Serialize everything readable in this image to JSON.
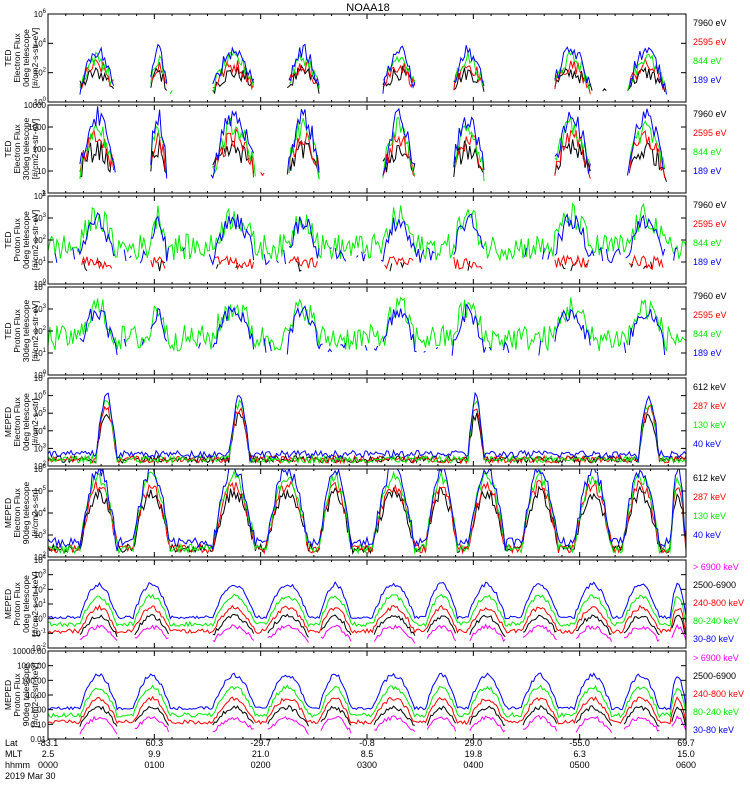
{
  "title": "NOAA18",
  "time_axis": {
    "row_labels": [
      "Lat",
      "MLT",
      "hhmm"
    ],
    "date": "2019 Mar 30",
    "columns": [
      {
        "lat": "-83.1",
        "mlt": "2.5",
        "hhmm": "0000"
      },
      {
        "lat": "60.3",
        "mlt": "9.9",
        "hhmm": "0100"
      },
      {
        "lat": "-29.7",
        "mlt": "21.0",
        "hhmm": "0200"
      },
      {
        "lat": "-0.8",
        "mlt": "8.5",
        "hhmm": "0300"
      },
      {
        "lat": "29.0",
        "mlt": "19.8",
        "hhmm": "0400"
      },
      {
        "lat": "-55.0",
        "mlt": "6.3",
        "hhmm": "0500"
      },
      {
        "lat": "69.7",
        "mlt": "15.0",
        "hhmm": "0600"
      }
    ]
  },
  "colors": {
    "black": "#000000",
    "red": "#ff0000",
    "green": "#00ee00",
    "blue": "#0000ff",
    "magenta": "#ff00ff"
  },
  "chart_data": [
    {
      "type": "line",
      "ylabel": [
        "TED",
        "Electron Flux",
        "0deg telescope",
        "[#/cm2-s-str-eV]"
      ],
      "yscale": "log",
      "ylim": [
        1,
        1000000
      ],
      "ytick_labels": [
        "10^0",
        "10^2",
        "10^4",
        "10^6"
      ],
      "series": [
        {
          "name": "7960 eV",
          "color": "black"
        },
        {
          "name": "2595 eV",
          "color": "red"
        },
        {
          "name": "844 eV",
          "color": "green"
        },
        {
          "name": "189 eV",
          "color": "blue"
        }
      ]
    },
    {
      "type": "line",
      "ylabel": [
        "TED",
        "Electron Flux",
        "30deg telescope",
        "[#/cm2-s-str-eV]"
      ],
      "yscale": "log",
      "ylim": [
        1,
        10000
      ],
      "ytick_labels": [
        "1",
        "10",
        "100",
        "1000",
        "10000"
      ],
      "series": [
        {
          "name": "7960 eV",
          "color": "black"
        },
        {
          "name": "2595 eV",
          "color": "red"
        },
        {
          "name": "844 eV",
          "color": "green"
        },
        {
          "name": "189 eV",
          "color": "blue"
        }
      ]
    },
    {
      "type": "line",
      "ylabel": [
        "TED",
        "Proton Flux",
        "0deg telescope",
        "[#/cm2-s-str-eV]"
      ],
      "yscale": "log",
      "ylim": [
        1,
        10000
      ],
      "ytick_labels": [
        "10^0",
        "10^1",
        "10^2",
        "10^3",
        "10^4"
      ],
      "series": [
        {
          "name": "7960 eV",
          "color": "black"
        },
        {
          "name": "2595 eV",
          "color": "red"
        },
        {
          "name": "844 eV",
          "color": "green"
        },
        {
          "name": "189 eV",
          "color": "blue"
        }
      ]
    },
    {
      "type": "line",
      "ylabel": [
        "TED",
        "Proton Flux",
        "30deg telescope",
        "[#/cm2-s-str-eV]"
      ],
      "yscale": "log",
      "ylim": [
        1,
        10000
      ],
      "ytick_labels": [
        "10^0",
        "10^1",
        "10^2",
        "10^3",
        "10^4"
      ],
      "series": [
        {
          "name": "7960 eV",
          "color": "black"
        },
        {
          "name": "2595 eV",
          "color": "red"
        },
        {
          "name": "844 eV",
          "color": "green"
        },
        {
          "name": "189 eV",
          "color": "blue"
        }
      ]
    },
    {
      "type": "line",
      "ylabel": [
        "MEPED",
        "Electron Flux",
        "0deg telescope",
        "[#/cm2-s-str]"
      ],
      "yscale": "log",
      "ylim": [
        100,
        10000000
      ],
      "ytick_labels": [
        "10^2",
        "10^3",
        "10^4",
        "10^5",
        "10^6",
        "10^7"
      ],
      "series": [
        {
          "name": "612 keV",
          "color": "black"
        },
        {
          "name": "287 keV",
          "color": "red"
        },
        {
          "name": "130 keV",
          "color": "green"
        },
        {
          "name": "40 keV",
          "color": "blue"
        }
      ]
    },
    {
      "type": "line",
      "ylabel": [
        "MEPED",
        "Electron Flux",
        "90deg telescope",
        "[#/cm2-s-str]"
      ],
      "yscale": "log",
      "ylim": [
        100,
        1000000
      ],
      "ytick_labels": [
        "10^2",
        "10^3",
        "10^4",
        "10^5",
        "10^6"
      ],
      "series": [
        {
          "name": "612 keV",
          "color": "black"
        },
        {
          "name": "287 keV",
          "color": "red"
        },
        {
          "name": "130 keV",
          "color": "green"
        },
        {
          "name": "40 keV",
          "color": "blue"
        }
      ]
    },
    {
      "type": "line",
      "ylabel": [
        "MEPED",
        "Proton Flux",
        "0deg telescope",
        "[#/cm2-s-str-keV]"
      ],
      "yscale": "log",
      "ylim": [
        0.01,
        10000
      ],
      "ytick_labels": [
        "10^-2",
        "10^-1",
        "10^0",
        "10^1",
        "10^2",
        "10^3",
        "10^4"
      ],
      "series": [
        {
          "name": "> 6900 keV",
          "color": "magenta"
        },
        {
          "name": "2500-6900",
          "color": "black"
        },
        {
          "name": "240-800 keV",
          "color": "red"
        },
        {
          "name": "80-240 keV",
          "color": "green"
        },
        {
          "name": "30-80 keV",
          "color": "blue"
        }
      ]
    },
    {
      "type": "line",
      "ylabel": [
        "MEPED",
        "Proton Flux",
        "90deg telescope",
        "[#/cm2-s-str-keV]"
      ],
      "yscale": "log",
      "ylim": [
        0.01,
        10000
      ],
      "ytick_labels": [
        "0.01",
        "0.10",
        "1.00",
        "10.00",
        "100.00",
        "1000.00",
        "10000.00"
      ],
      "series": [
        {
          "name": "> 6900 keV",
          "color": "magenta"
        },
        {
          "name": "2500-6900",
          "color": "black"
        },
        {
          "name": "240-800 keV",
          "color": "red"
        },
        {
          "name": "80-240 keV",
          "color": "green"
        },
        {
          "name": "30-80 keV",
          "color": "blue"
        }
      ]
    }
  ]
}
